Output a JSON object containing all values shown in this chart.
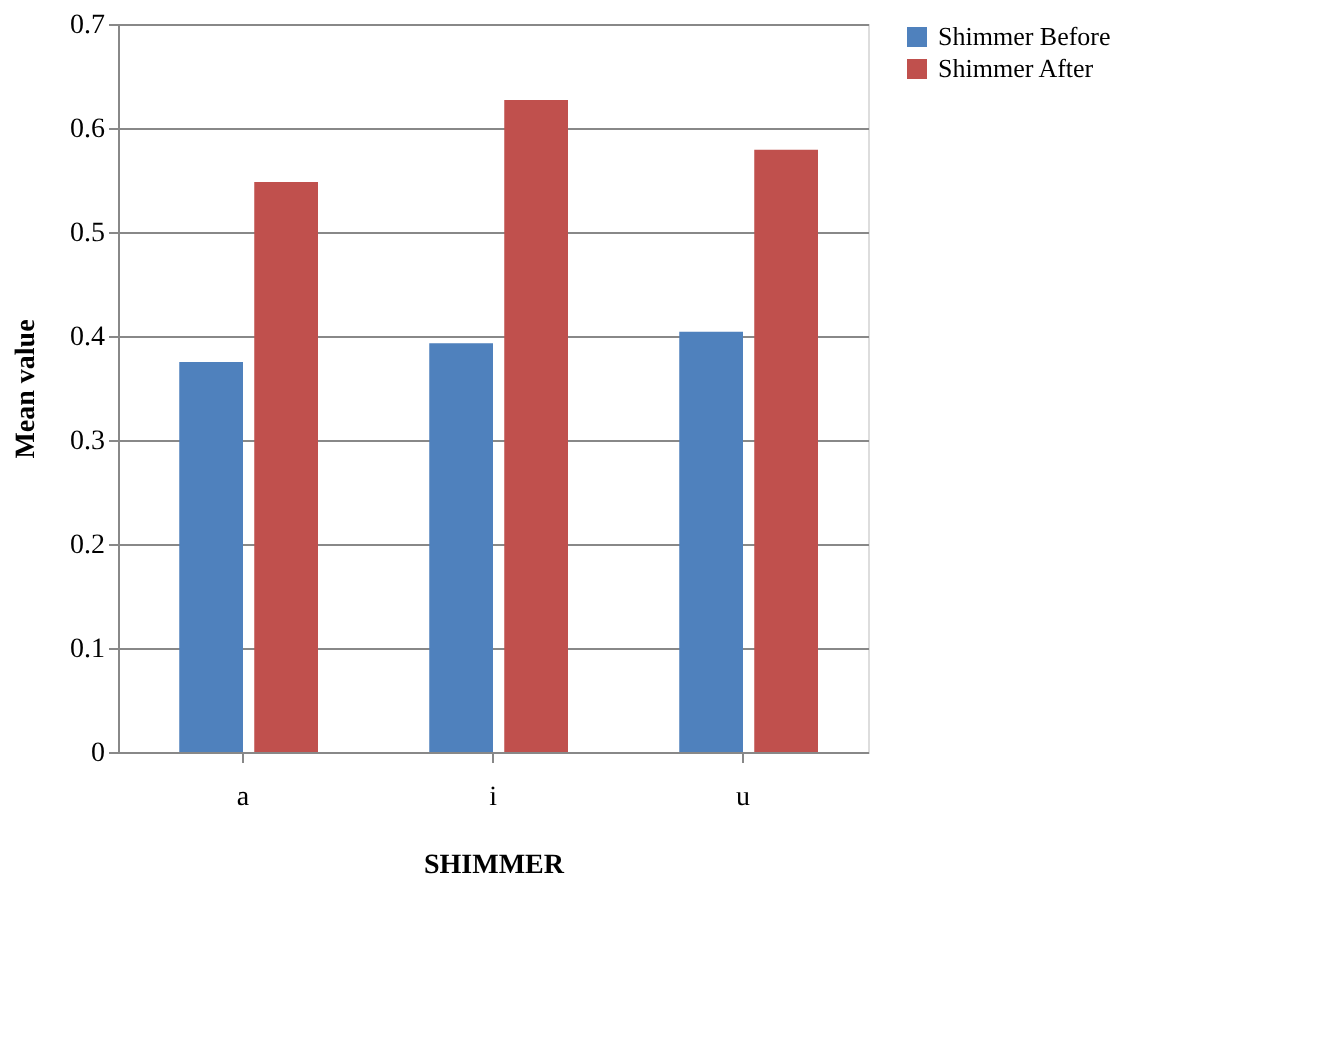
{
  "chart_data": {
    "type": "bar",
    "xlabel": "SHIMMER",
    "ylabel": "Mean value",
    "categories": [
      "a",
      "i",
      "u"
    ],
    "series": [
      {
        "name": "Shimmer Before",
        "color": "#4f81bd",
        "values": [
          0.375,
          0.393,
          0.404
        ]
      },
      {
        "name": "Shimmer After",
        "color": "#c0504d",
        "values": [
          0.548,
          0.627,
          0.579
        ]
      }
    ],
    "ylim": [
      0,
      0.7
    ],
    "yticks": [
      0,
      0.1,
      0.2,
      0.3,
      0.4,
      0.5,
      0.6,
      0.7
    ],
    "grid": "y",
    "legend": "right"
  }
}
